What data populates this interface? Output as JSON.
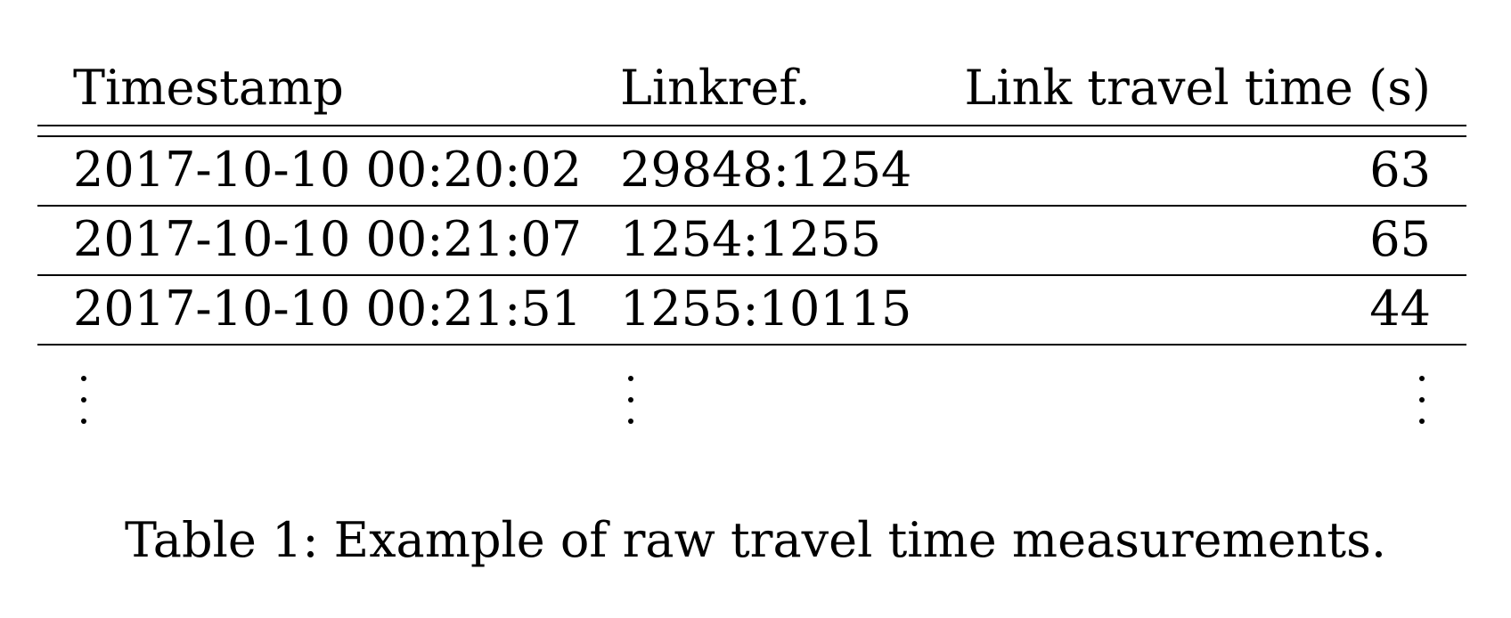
{
  "table": {
    "headers": [
      "Timestamp",
      "Linkref.",
      "Link travel time (s)"
    ],
    "rows": [
      [
        "2017-10-10 00:20:02",
        "29848:1254",
        "63"
      ],
      [
        "2017-10-10 00:21:07",
        "1254:1255",
        "65"
      ],
      [
        "2017-10-10 00:21:51",
        "1255:10115",
        "44"
      ]
    ],
    "continuation": "vertical-ellipsis"
  },
  "caption": "Table 1: Example of raw travel time measurements."
}
